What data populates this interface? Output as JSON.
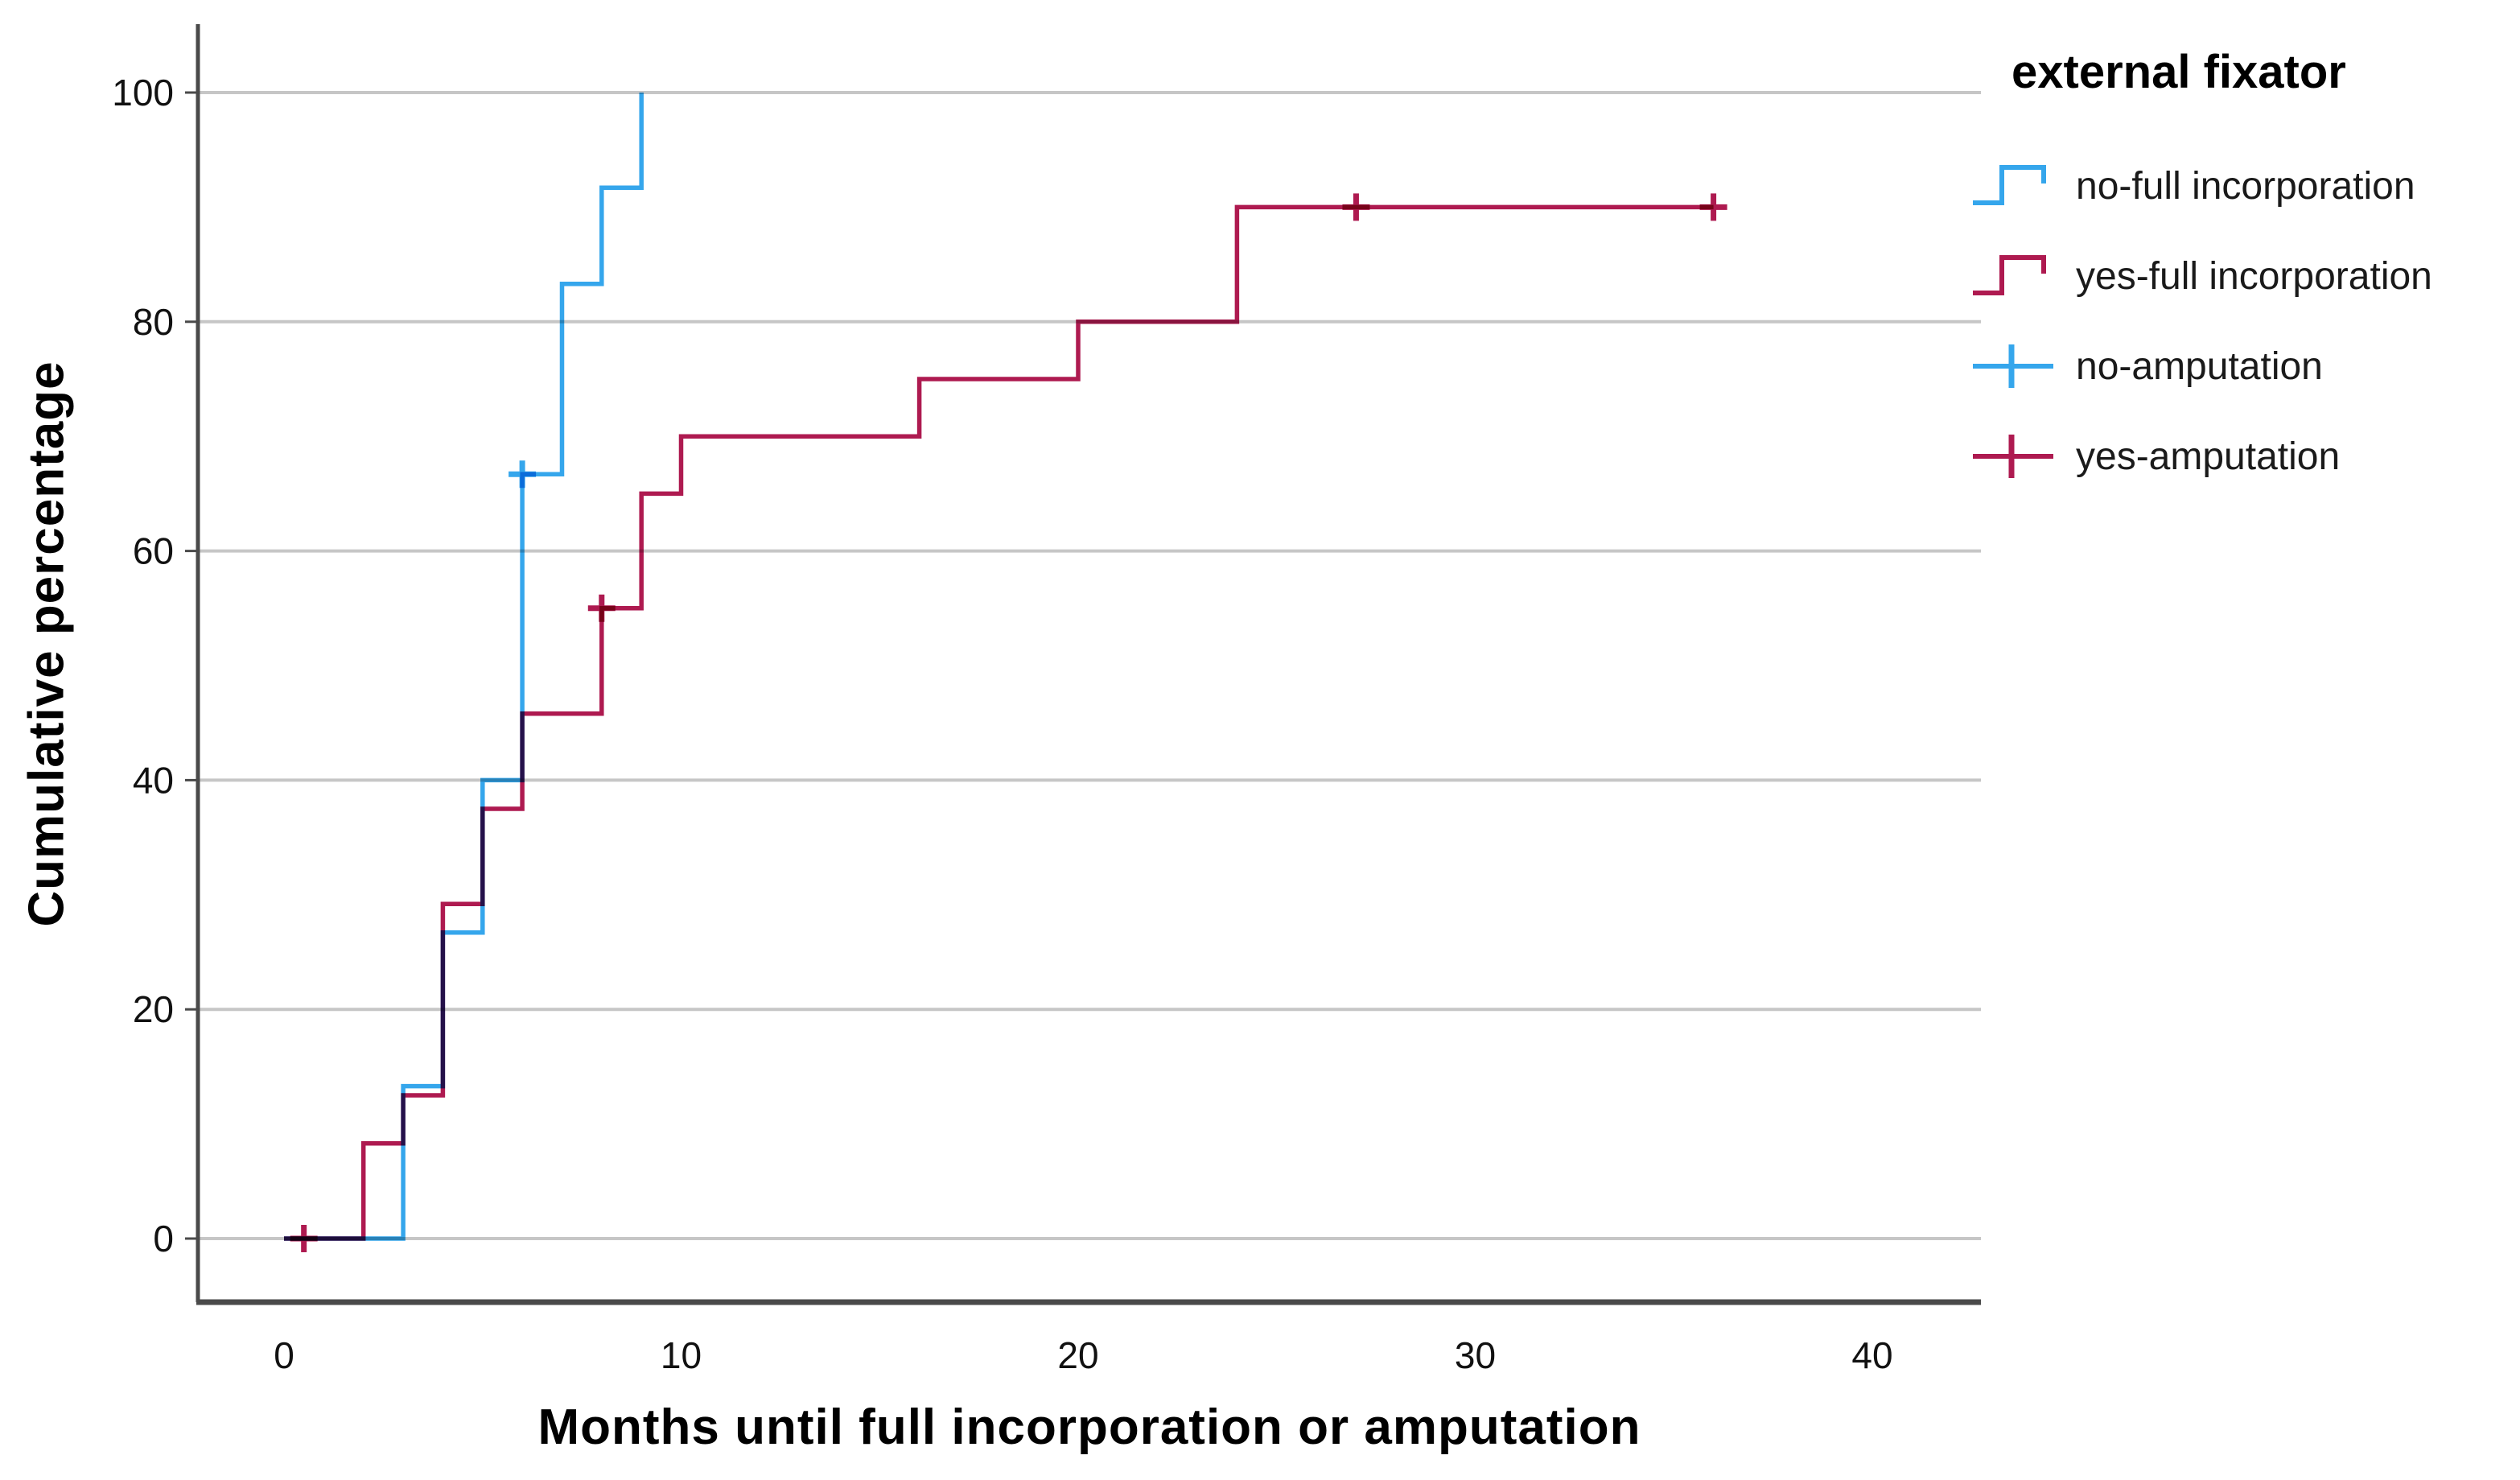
{
  "chart_data": {
    "type": "line",
    "subtype": "step-survival-cumulative-incidence",
    "title": "",
    "xlabel": "Months until full incorporation or amputation",
    "ylabel": "Cumulative percentage",
    "xlim": [
      0,
      40
    ],
    "ylim": [
      0,
      100
    ],
    "x_ticks": [
      "0",
      "10",
      "20",
      "30",
      "40"
    ],
    "y_ticks": [
      "0",
      "20",
      "40",
      "60",
      "80",
      "100"
    ],
    "grid": "horizontal-only",
    "legend_position": "top-right",
    "legend_title": "external fixator",
    "series": [
      {
        "name": "no-full incorporation",
        "color": "#35A6EC",
        "step_vertices": [
          [
            0,
            0
          ],
          [
            3,
            0
          ],
          [
            3,
            13.3
          ],
          [
            4,
            13.3
          ],
          [
            4,
            26.7
          ],
          [
            5,
            26.7
          ],
          [
            5,
            40
          ],
          [
            6,
            40
          ],
          [
            6,
            66.7
          ],
          [
            7,
            66.7
          ],
          [
            7,
            83.3
          ],
          [
            8,
            83.3
          ],
          [
            8,
            91.7
          ],
          [
            9,
            91.7
          ],
          [
            9,
            100
          ]
        ],
        "censored_points": [
          [
            6,
            66.7
          ]
        ]
      },
      {
        "name": "yes-full incorporation",
        "color": "#AE1A50",
        "step_vertices": [
          [
            0,
            0
          ],
          [
            2,
            0
          ],
          [
            2,
            8.3
          ],
          [
            3,
            8.3
          ],
          [
            3,
            12.5
          ],
          [
            4,
            12.5
          ],
          [
            4,
            29.2
          ],
          [
            5,
            29.2
          ],
          [
            5,
            37.5
          ],
          [
            6,
            37.5
          ],
          [
            6,
            45.8
          ],
          [
            8,
            45.8
          ],
          [
            8,
            55
          ],
          [
            9,
            55
          ],
          [
            9,
            65
          ],
          [
            10,
            65
          ],
          [
            10,
            70
          ],
          [
            16,
            70
          ],
          [
            16,
            75
          ],
          [
            20,
            75
          ],
          [
            20,
            80
          ],
          [
            24,
            80
          ],
          [
            24,
            90
          ],
          [
            36,
            90
          ]
        ],
        "censored_points": [
          [
            0.5,
            0
          ],
          [
            8,
            55
          ],
          [
            27,
            90
          ],
          [
            36,
            90
          ]
        ]
      }
    ],
    "legend": [
      {
        "label": "no-full incorporation",
        "glyph": "step-line",
        "color": "#35A6EC"
      },
      {
        "label": "yes-full incorporation",
        "glyph": "step-line",
        "color": "#AE1A50"
      },
      {
        "label": "no-amputation",
        "glyph": "censor-cross",
        "color": "#35A6EC"
      },
      {
        "label": "yes-amputation",
        "glyph": "censor-cross",
        "color": "#AE1A50"
      }
    ],
    "colors": {
      "grid": "#C6C6C6",
      "axis": "#4A4A4A",
      "tick_text": "#111111"
    }
  }
}
